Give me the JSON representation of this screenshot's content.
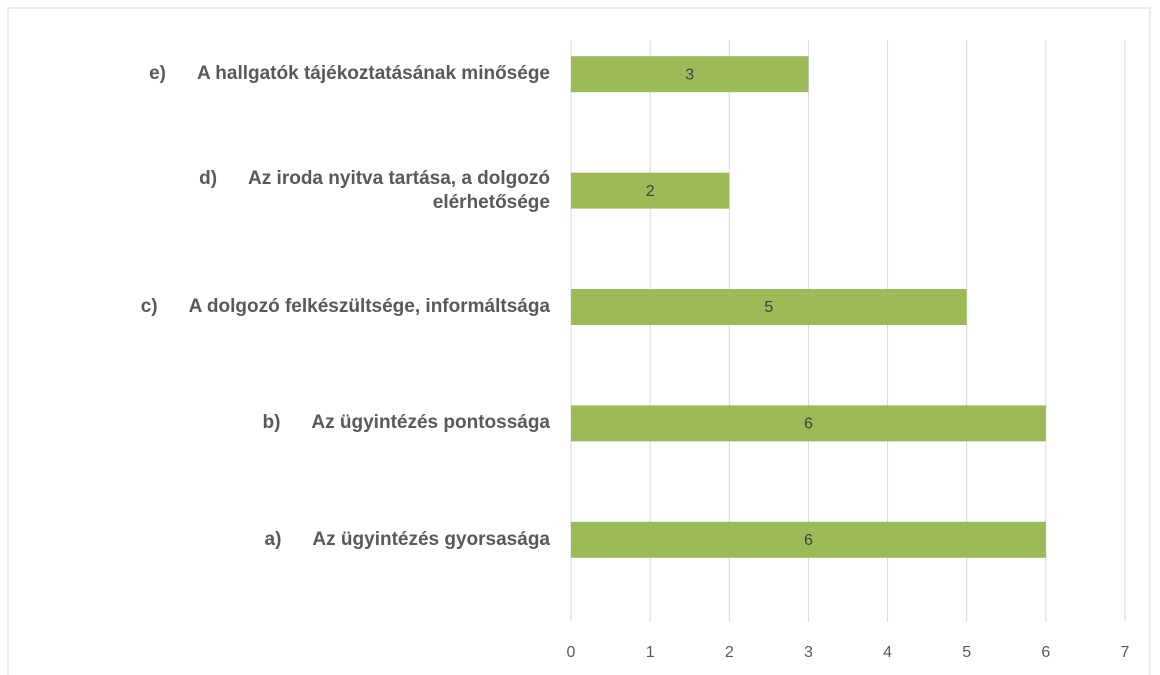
{
  "chart_data": {
    "type": "bar",
    "orientation": "horizontal",
    "categories": [
      "a)      Az ügyintézés gyorsasága",
      "b)      Az ügyintézés pontossága",
      "c)      A dolgozó felkészültsége, informáltsága",
      "d)      Az iroda nyitva tartása, a dolgozó elérhetősége",
      "e)      A hallgatók tájékoztatásának minősége"
    ],
    "values": [
      6,
      6,
      5,
      2,
      3
    ],
    "color": "#9bbb59",
    "xlim": [
      0,
      7
    ],
    "xticks": [
      0,
      1,
      2,
      3,
      4,
      5,
      6,
      7
    ],
    "grid": true
  }
}
